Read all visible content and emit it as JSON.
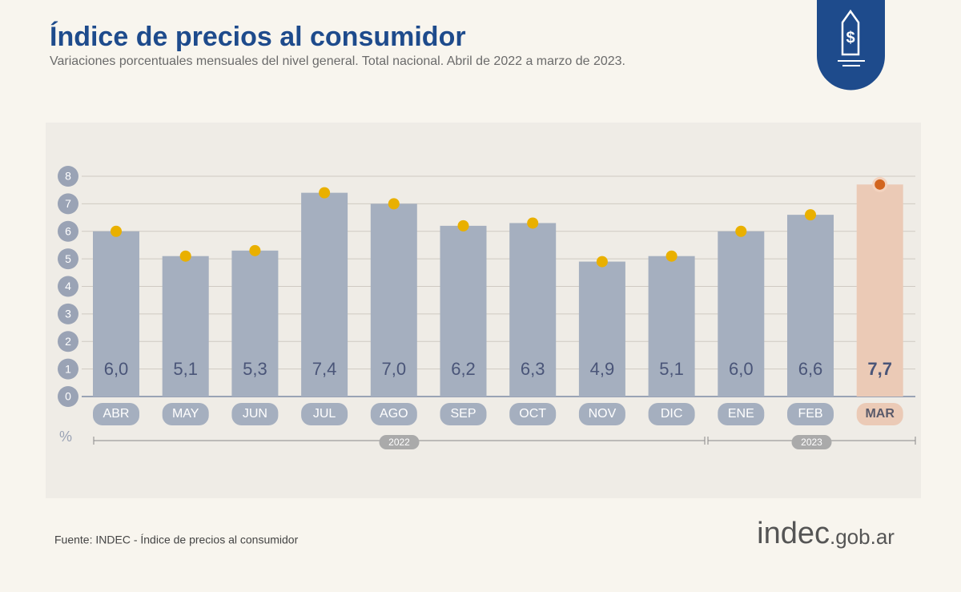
{
  "chart_data": {
    "type": "bar",
    "title": "Índice de precios al consumidor",
    "subtitle": "Variaciones porcentuales mensuales del nivel general. Total nacional. Abril de 2022 a marzo de 2023.",
    "categories": [
      "ABR",
      "MAY",
      "JUN",
      "JUL",
      "AGO",
      "SEP",
      "OCT",
      "NOV",
      "DIC",
      "ENE",
      "FEB",
      "MAR"
    ],
    "values": [
      6.0,
      5.1,
      5.3,
      7.4,
      7.0,
      6.2,
      6.3,
      4.9,
      5.1,
      6.0,
      6.6,
      7.7
    ],
    "value_labels": [
      "6,0",
      "5,1",
      "5,3",
      "7,4",
      "7,0",
      "6,2",
      "6,3",
      "4,9",
      "5,1",
      "6,0",
      "6,6",
      "7,7"
    ],
    "colors": [
      "#a5afbf",
      "#a5afbf",
      "#a5afbf",
      "#a5afbf",
      "#a5afbf",
      "#a5afbf",
      "#a5afbf",
      "#a5afbf",
      "#a5afbf",
      "#a5afbf",
      "#a5afbf",
      "#ebcab6"
    ],
    "dot_colors": [
      "#e9b000",
      "#e9b000",
      "#e9b000",
      "#e9b000",
      "#e9b000",
      "#e9b000",
      "#e9b000",
      "#e9b000",
      "#e9b000",
      "#e9b000",
      "#e9b000",
      "#d2651f"
    ],
    "ylim": [
      0,
      8
    ],
    "yticks": [
      0,
      1,
      2,
      3,
      4,
      5,
      6,
      7,
      8
    ],
    "grid": true,
    "y_unit": "%",
    "groups": [
      {
        "label": "2022",
        "count": 9
      },
      {
        "label": "2023",
        "count": 3
      }
    ],
    "source": "Fuente: INDEC - Índice de precios al consumidor",
    "brand": "indec",
    "brand_suffix": ".gob.ar"
  }
}
